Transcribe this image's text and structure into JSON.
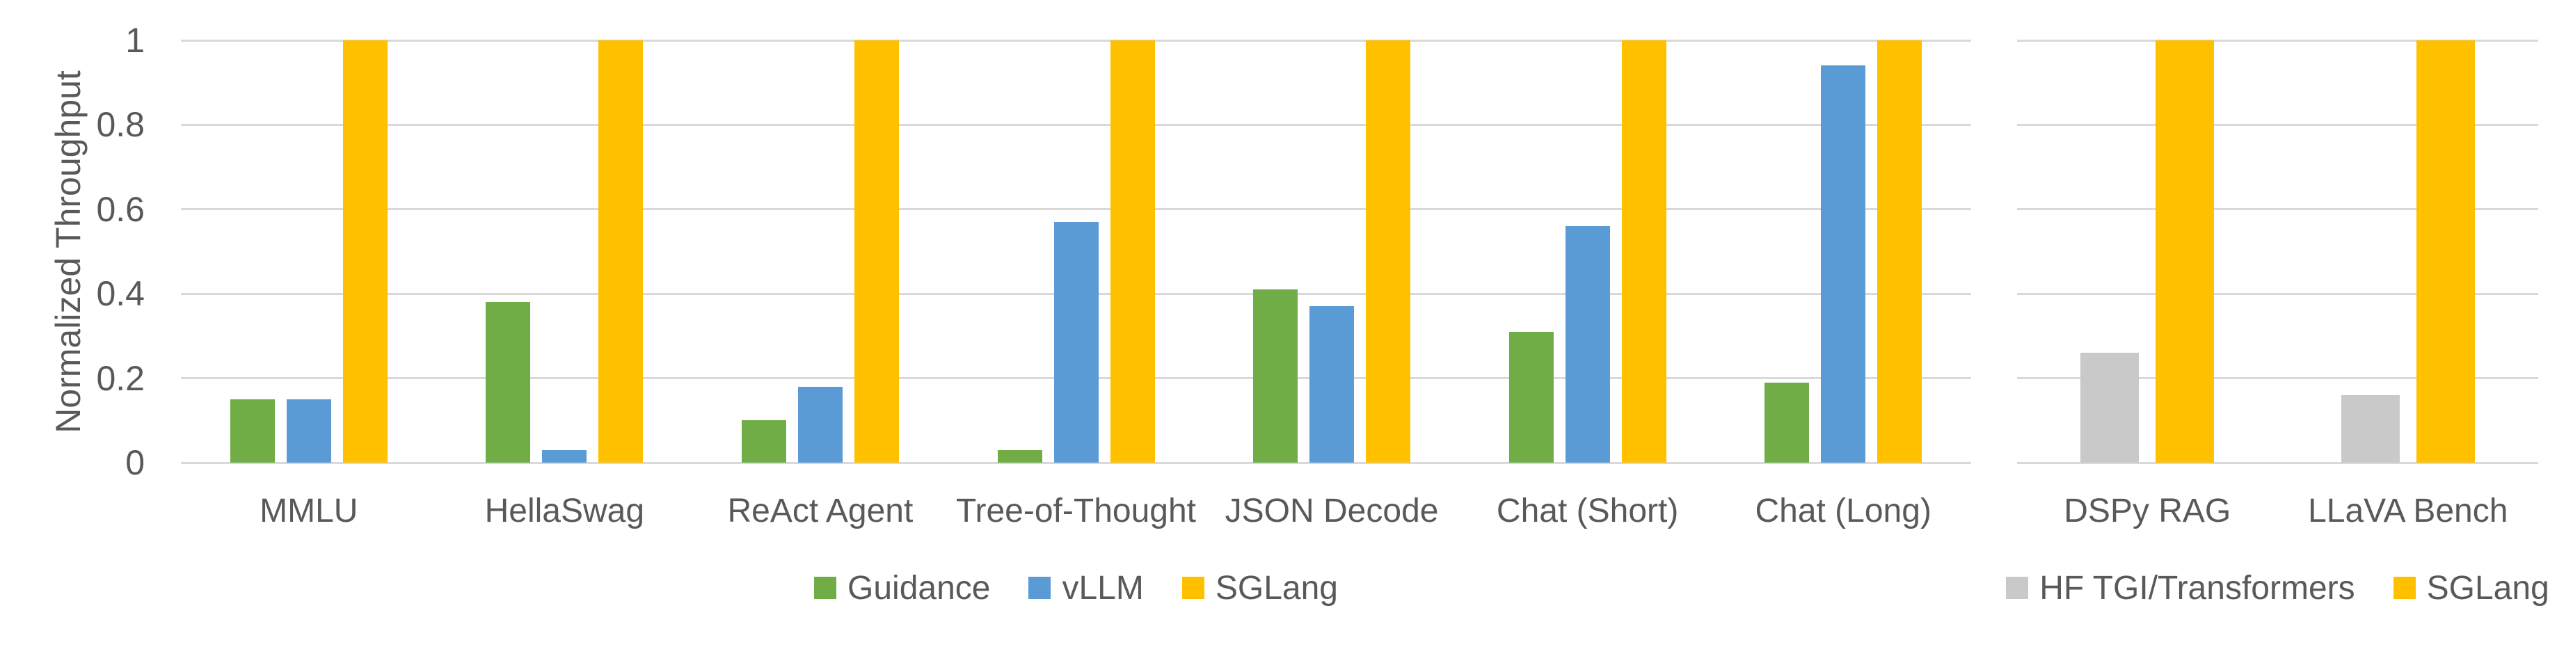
{
  "figure": {
    "background": "#FFFFFF",
    "text_color": "#595959",
    "gridline_color": "#D9D9D9"
  },
  "chart_data": [
    {
      "type": "bar",
      "title": "",
      "xlabel": "",
      "ylabel": "Normalized Throughput",
      "ylim": [
        0,
        1
      ],
      "yticks": [
        0,
        0.2,
        0.4,
        0.6,
        0.8,
        1
      ],
      "ytick_labels": [
        "0",
        "0.2",
        "0.4",
        "0.6",
        "0.8",
        "1"
      ],
      "grid": true,
      "legend_position": "bottom",
      "categories": [
        "MMLU",
        "HellaSwag",
        "ReAct Agent",
        "Tree-of-Thought",
        "JSON Decode",
        "Chat (Short)",
        "Chat (Long)"
      ],
      "series": [
        {
          "name": "Guidance",
          "color": "#70AD47",
          "values": [
            0.15,
            0.38,
            0.1,
            0.03,
            0.41,
            0.31,
            0.19
          ]
        },
        {
          "name": "vLLM",
          "color": "#5B9BD5",
          "values": [
            0.15,
            0.03,
            0.18,
            0.57,
            0.37,
            0.56,
            0.94
          ]
        },
        {
          "name": "SGLang",
          "color": "#FFC000",
          "values": [
            1,
            1,
            1,
            1,
            1,
            1,
            1
          ]
        }
      ]
    },
    {
      "type": "bar",
      "title": "",
      "xlabel": "",
      "ylabel": "",
      "ylim": [
        0,
        1
      ],
      "yticks": [
        0,
        0.2,
        0.4,
        0.6,
        0.8,
        1
      ],
      "ytick_labels": [],
      "grid": true,
      "legend_position": "bottom",
      "categories": [
        "DSPy RAG",
        "LLaVA Bench"
      ],
      "series": [
        {
          "name": "HF TGI/Transformers",
          "color": "#C9C9C9",
          "values": [
            0.26,
            0.16
          ]
        },
        {
          "name": "SGLang",
          "color": "#FFC000",
          "values": [
            1,
            1
          ]
        }
      ]
    }
  ]
}
